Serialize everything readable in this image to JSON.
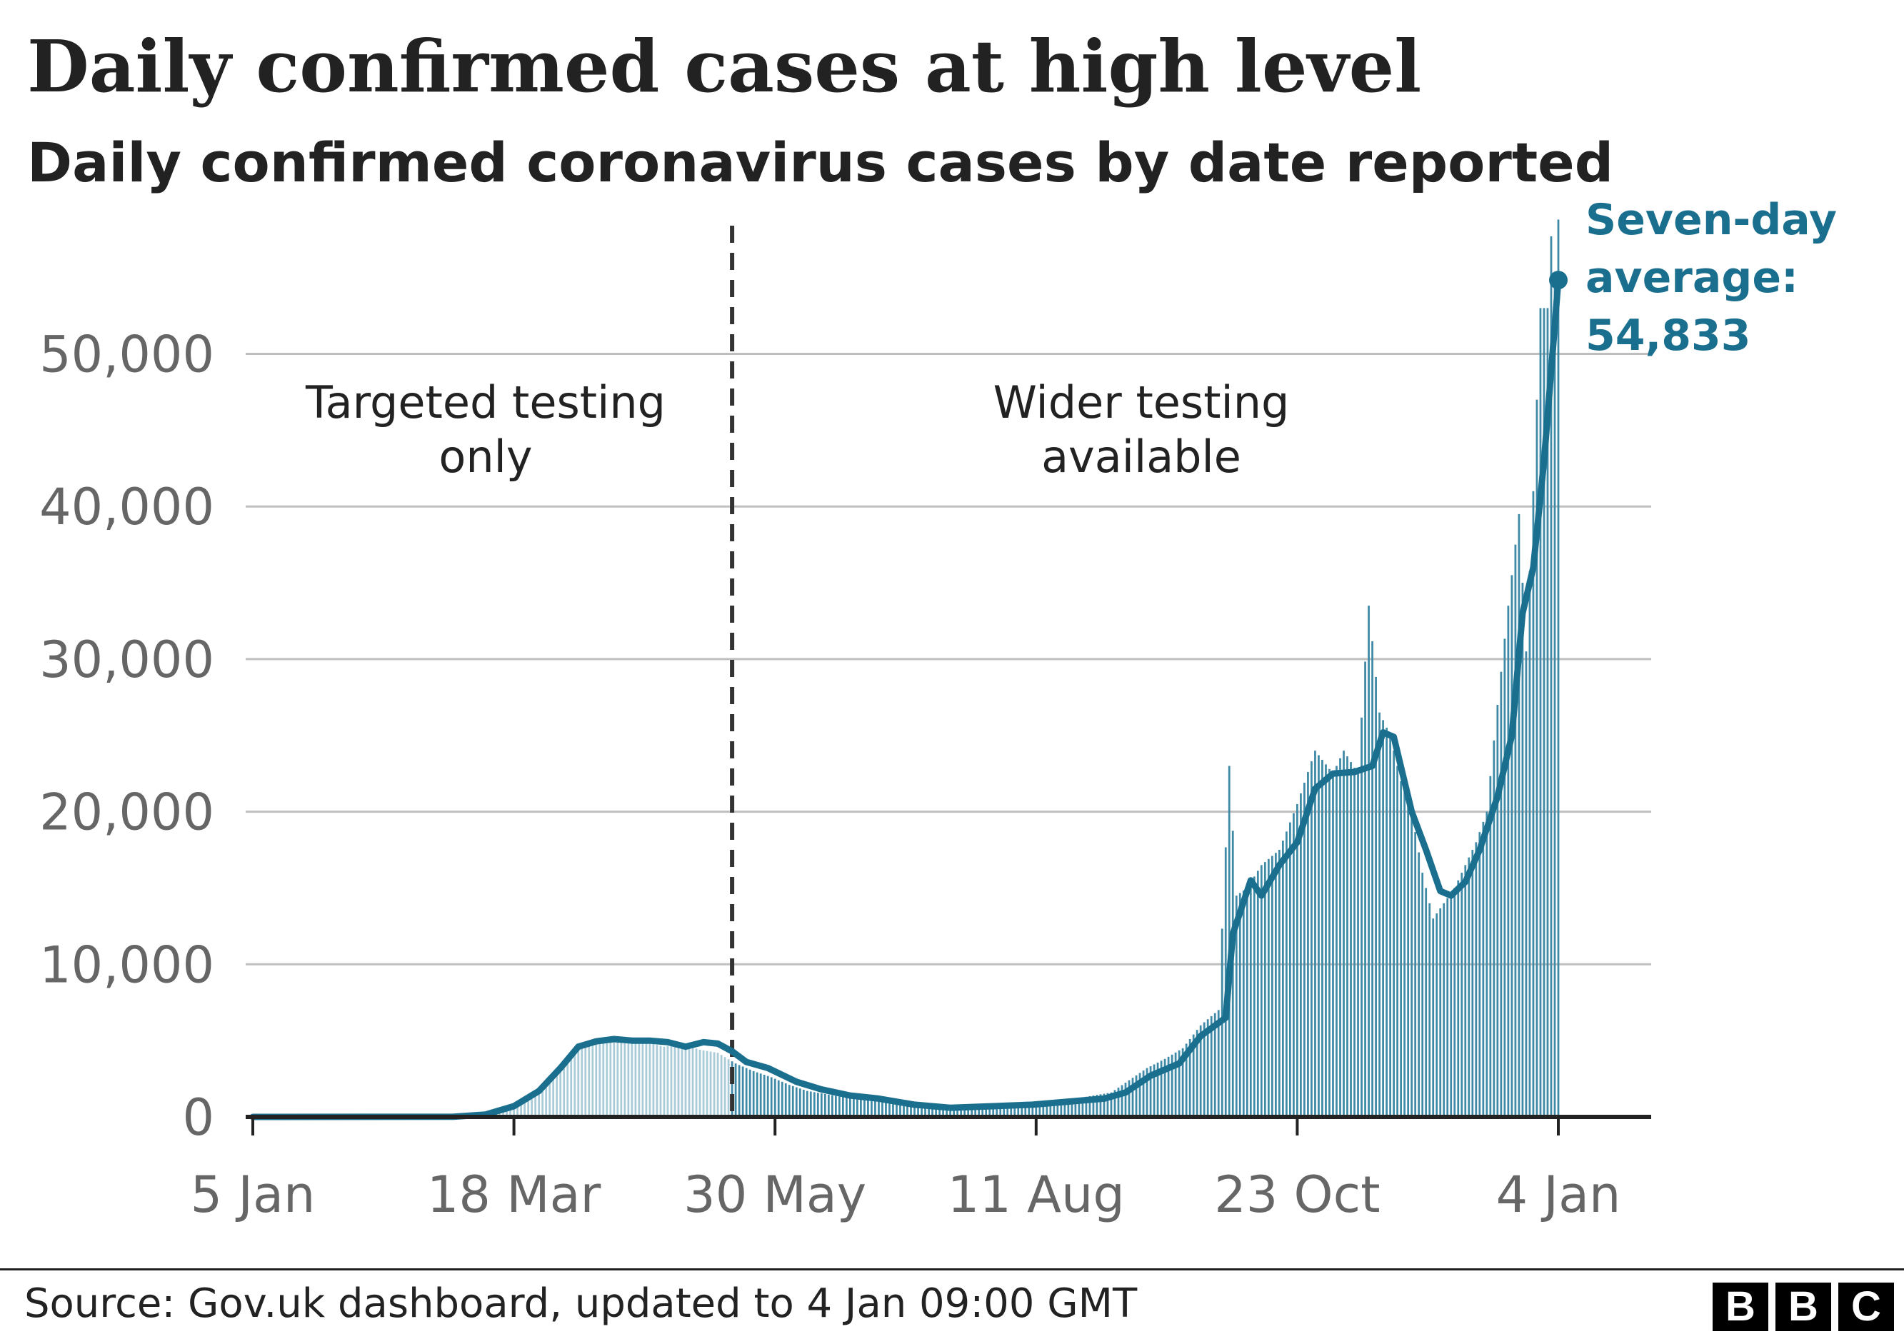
{
  "header": {
    "title": "Daily confirmed cases at high level",
    "subtitle": "Daily confirmed coronavirus cases by date reported"
  },
  "footer": {
    "source": "Source: Gov.uk dashboard, updated to 4 Jan 09:00 GMT",
    "logo_letters": [
      "B",
      "B",
      "C"
    ]
  },
  "colors": {
    "accent": "#1a6f8f",
    "bar_dark": "#3e89a6",
    "bar_light": "#a9cad7",
    "gridline": "#bfbfbf",
    "axis": "#222222",
    "tick_text": "#666666"
  },
  "chart_data": {
    "type": "bar",
    "title": "Daily confirmed cases at high level",
    "subtitle": "Daily confirmed coronavirus cases by date reported",
    "xlabel": "",
    "ylabel": "",
    "x_range": [
      "2020-01-05",
      "2021-01-04"
    ],
    "ylim": [
      0,
      55000
    ],
    "y_ticks": [
      0,
      10000,
      20000,
      30000,
      40000,
      50000
    ],
    "y_tick_labels": [
      "0",
      "10,000",
      "20,000",
      "30,000",
      "40,000",
      "50,000"
    ],
    "x_tick_labels": [
      "5 Jan",
      "18 Mar",
      "30 May",
      "11 Aug",
      "23 Oct",
      "4 Jan"
    ],
    "x_tick_dates": [
      "2020-01-05",
      "2020-03-18",
      "2020-05-30",
      "2020-08-11",
      "2020-10-23",
      "2021-01-04"
    ],
    "grid": "horizontal",
    "series": [
      {
        "name": "Daily cases",
        "style": "bars",
        "values": [
          [
            "2020-03-01",
            10
          ],
          [
            "2020-03-05",
            50
          ],
          [
            "2020-03-10",
            100
          ],
          [
            "2020-03-15",
            300
          ],
          [
            "2020-03-20",
            800
          ],
          [
            "2020-03-25",
            1600
          ],
          [
            "2020-03-30",
            3000
          ],
          [
            "2020-04-04",
            4200
          ],
          [
            "2020-04-09",
            5000
          ],
          [
            "2020-04-14",
            5200
          ],
          [
            "2020-04-19",
            5000
          ],
          [
            "2020-04-24",
            4900
          ],
          [
            "2020-04-29",
            4600
          ],
          [
            "2020-05-04",
            4800
          ],
          [
            "2020-05-09",
            4400
          ],
          [
            "2020-05-14",
            4200
          ],
          [
            "2020-05-19",
            3500
          ],
          [
            "2020-05-24",
            3000
          ],
          [
            "2020-05-29",
            2600
          ],
          [
            "2020-06-03",
            2100
          ],
          [
            "2020-06-08",
            1700
          ],
          [
            "2020-06-13",
            1500
          ],
          [
            "2020-06-18",
            1300
          ],
          [
            "2020-06-23",
            1200
          ],
          [
            "2020-06-28",
            1000
          ],
          [
            "2020-07-03",
            800
          ],
          [
            "2020-07-08",
            700
          ],
          [
            "2020-07-13",
            650
          ],
          [
            "2020-07-18",
            700
          ],
          [
            "2020-07-23",
            750
          ],
          [
            "2020-07-28",
            800
          ],
          [
            "2020-08-02",
            850
          ],
          [
            "2020-08-07",
            900
          ],
          [
            "2020-08-12",
            1000
          ],
          [
            "2020-08-17",
            1100
          ],
          [
            "2020-08-22",
            1200
          ],
          [
            "2020-08-27",
            1400
          ],
          [
            "2020-09-01",
            1600
          ],
          [
            "2020-09-06",
            2400
          ],
          [
            "2020-09-11",
            3200
          ],
          [
            "2020-09-16",
            3800
          ],
          [
            "2020-09-21",
            4500
          ],
          [
            "2020-09-26",
            6000
          ],
          [
            "2020-10-01",
            7000
          ],
          [
            "2020-10-04",
            23000
          ],
          [
            "2020-10-06",
            14500
          ],
          [
            "2020-10-09",
            15000
          ],
          [
            "2020-10-13",
            16500
          ],
          [
            "2020-10-18",
            17500
          ],
          [
            "2020-10-23",
            20500
          ],
          [
            "2020-10-28",
            24000
          ],
          [
            "2020-11-02",
            22500
          ],
          [
            "2020-11-05",
            24000
          ],
          [
            "2020-11-09",
            22500
          ],
          [
            "2020-11-12",
            33500
          ],
          [
            "2020-11-15",
            26500
          ],
          [
            "2020-11-18",
            25000
          ],
          [
            "2020-11-21",
            22000
          ],
          [
            "2020-11-24",
            20000
          ],
          [
            "2020-11-27",
            16000
          ],
          [
            "2020-11-30",
            13000
          ],
          [
            "2020-12-03",
            14000
          ],
          [
            "2020-12-06",
            15000
          ],
          [
            "2020-12-09",
            16500
          ],
          [
            "2020-12-12",
            18000
          ],
          [
            "2020-12-15",
            20000
          ],
          [
            "2020-12-18",
            27000
          ],
          [
            "2020-12-21",
            33500
          ],
          [
            "2020-12-24",
            39500
          ],
          [
            "2020-12-26",
            30500
          ],
          [
            "2020-12-28",
            41000
          ],
          [
            "2020-12-30",
            53000
          ],
          [
            "2021-01-01",
            53000
          ],
          [
            "2021-01-02",
            57700
          ],
          [
            "2021-01-03",
            54990
          ],
          [
            "2021-01-04",
            58800
          ]
        ]
      },
      {
        "name": "Seven-day average",
        "style": "line",
        "values": [
          [
            "2020-01-05",
            0
          ],
          [
            "2020-03-01",
            10
          ],
          [
            "2020-03-10",
            150
          ],
          [
            "2020-03-18",
            700
          ],
          [
            "2020-03-25",
            1700
          ],
          [
            "2020-03-31",
            3200
          ],
          [
            "2020-04-05",
            4600
          ],
          [
            "2020-04-10",
            4950
          ],
          [
            "2020-04-15",
            5100
          ],
          [
            "2020-04-20",
            5000
          ],
          [
            "2020-04-25",
            5000
          ],
          [
            "2020-04-30",
            4900
          ],
          [
            "2020-05-05",
            4600
          ],
          [
            "2020-05-10",
            4900
          ],
          [
            "2020-05-14",
            4800
          ],
          [
            "2020-05-18",
            4300
          ],
          [
            "2020-05-22",
            3600
          ],
          [
            "2020-05-28",
            3200
          ],
          [
            "2020-06-05",
            2300
          ],
          [
            "2020-06-12",
            1800
          ],
          [
            "2020-06-20",
            1400
          ],
          [
            "2020-06-28",
            1200
          ],
          [
            "2020-07-08",
            800
          ],
          [
            "2020-07-18",
            600
          ],
          [
            "2020-07-30",
            700
          ],
          [
            "2020-08-10",
            800
          ],
          [
            "2020-08-20",
            1000
          ],
          [
            "2020-08-30",
            1200
          ],
          [
            "2020-09-05",
            1600
          ],
          [
            "2020-09-12",
            2700
          ],
          [
            "2020-09-20",
            3500
          ],
          [
            "2020-09-26",
            5300
          ],
          [
            "2020-10-03",
            6500
          ],
          [
            "2020-10-05",
            12000
          ],
          [
            "2020-10-10",
            15500
          ],
          [
            "2020-10-13",
            14500
          ],
          [
            "2020-10-18",
            16500
          ],
          [
            "2020-10-23",
            18000
          ],
          [
            "2020-10-28",
            21500
          ],
          [
            "2020-11-02",
            22500
          ],
          [
            "2020-11-08",
            22600
          ],
          [
            "2020-11-13",
            23000
          ],
          [
            "2020-11-16",
            25200
          ],
          [
            "2020-11-19",
            24900
          ],
          [
            "2020-11-24",
            20000
          ],
          [
            "2020-11-28",
            17500
          ],
          [
            "2020-12-02",
            14800
          ],
          [
            "2020-12-05",
            14500
          ],
          [
            "2020-12-09",
            15400
          ],
          [
            "2020-12-13",
            17500
          ],
          [
            "2020-12-18",
            21000
          ],
          [
            "2020-12-22",
            25000
          ],
          [
            "2020-12-25",
            33000
          ],
          [
            "2020-12-28",
            36000
          ],
          [
            "2020-12-31",
            43000
          ],
          [
            "2021-01-04",
            54833
          ]
        ]
      }
    ],
    "annotations": [
      {
        "text_lines": [
          "Targeted testing",
          "only"
        ],
        "region": "left of divider"
      },
      {
        "text_lines": [
          "Wider testing",
          "available"
        ],
        "region": "right of divider"
      },
      {
        "text_lines": [
          "Seven-day",
          "average:",
          "54,833"
        ],
        "anchor": "last point",
        "value": 54833
      }
    ],
    "divider": {
      "style": "dashed vertical line",
      "date": "2020-05-18"
    }
  }
}
